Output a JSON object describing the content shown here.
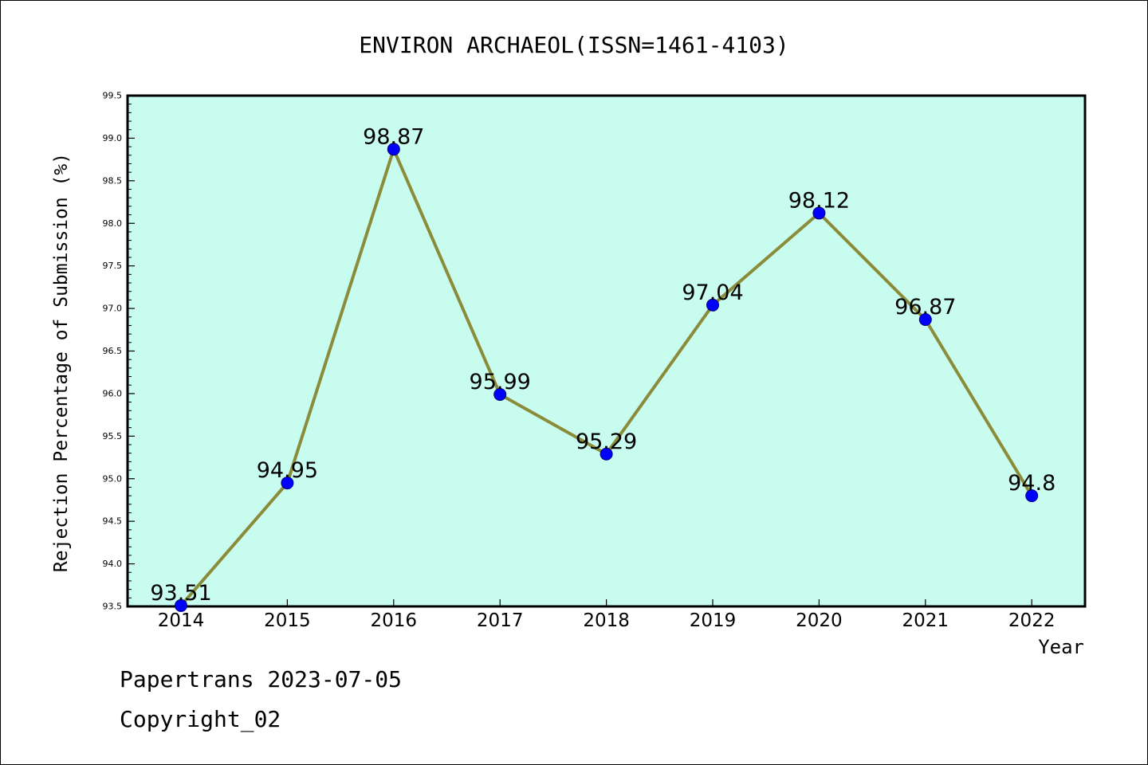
{
  "chart_data": {
    "type": "line",
    "title": "ENVIRON ARCHAEOL(ISSN=1461-4103)",
    "xlabel": "Year",
    "ylabel": "Rejection Percentage of Submission (%)",
    "x": [
      "2014",
      "2015",
      "2016",
      "2017",
      "2018",
      "2019",
      "2020",
      "2021",
      "2022"
    ],
    "series": [
      {
        "values": [
          93.51,
          94.95,
          98.87,
          95.99,
          95.29,
          97.04,
          98.12,
          96.87,
          94.8
        ]
      }
    ],
    "data_labels": [
      "93.51",
      "94.95",
      "98.87",
      "95.99",
      "95.29",
      "97.04",
      "98.12",
      "96.87",
      "94.8"
    ],
    "ylim": [
      93.5,
      99.5
    ],
    "yticks": [
      "93.5",
      "94.0",
      "94.5",
      "95.0",
      "95.5",
      "96.0",
      "96.5",
      "97.0",
      "97.5",
      "98.0",
      "98.5",
      "99.0",
      "99.5"
    ],
    "grid": false,
    "legend": "none",
    "colors": {
      "plot_background": "#c8fcee",
      "line": "#8b8c3a",
      "marker": "#0000ff"
    }
  },
  "footer": {
    "line1": "Papertrans 2023-07-05",
    "line2": "Copyright_02"
  }
}
